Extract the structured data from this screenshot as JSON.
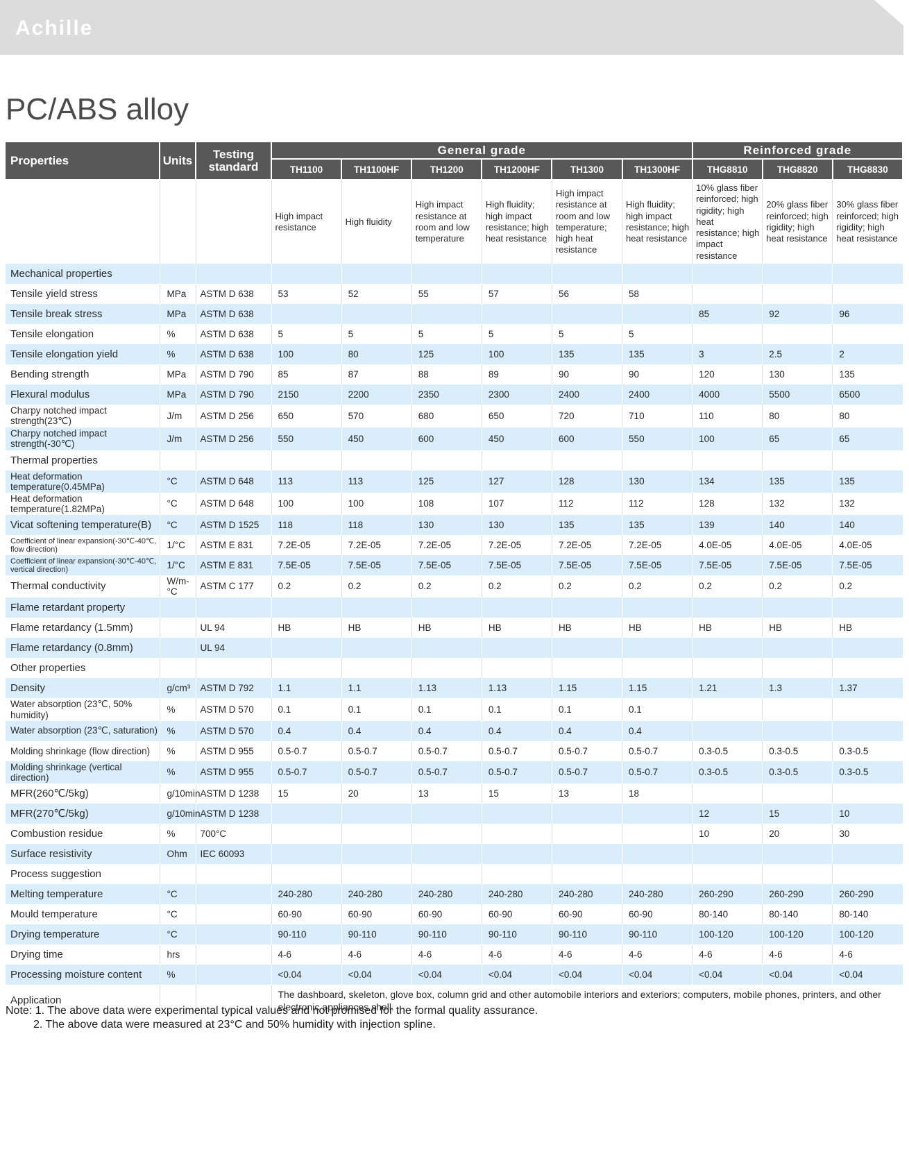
{
  "brand": {
    "logo": "Achille"
  },
  "page_title": "PC/ABS alloy",
  "table": {
    "header": {
      "properties": "Properties",
      "units": "Units",
      "testing_standard": "Testing standard",
      "groups": [
        {
          "label": "General grade",
          "span": 6
        },
        {
          "label": "Reinforced grade",
          "span": 3
        }
      ],
      "grades": [
        "TH1100",
        "TH1100HF",
        "TH1200",
        "TH1200HF",
        "TH1300",
        "TH1300HF",
        "THG8810",
        "THG8820",
        "THG8830"
      ],
      "descriptions": [
        "High impact resistance",
        "High fluidity",
        "High impact resistance at room and low temperature",
        "High fluidity; high impact resistance; high heat resistance",
        "High impact resistance at room and low temperature; high heat resistance",
        "High fluidity; high impact resistance; high heat resistance",
        "10% glass fiber reinforced; high rigidity; high heat resistance; high impact resistance",
        "20% glass fiber reinforced; high rigidity; high heat resistance",
        "30% glass fiber reinforced; high rigidity; high heat resistance"
      ]
    },
    "rows": [
      {
        "type": "section",
        "label": "Mechanical properties"
      },
      {
        "type": "data",
        "label": "Tensile yield stress",
        "unit": "MPa",
        "standard": "ASTM D 638",
        "values": [
          "53",
          "52",
          "55",
          "57",
          "56",
          "58",
          "",
          "",
          ""
        ]
      },
      {
        "type": "data",
        "label": "Tensile break stress",
        "unit": "MPa",
        "standard": "ASTM D 638",
        "values": [
          "",
          "",
          "",
          "",
          "",
          "",
          "85",
          "92",
          "96"
        ]
      },
      {
        "type": "data",
        "label": "Tensile elongation",
        "unit": "%",
        "standard": "ASTM D 638",
        "values": [
          "5",
          "5",
          "5",
          "5",
          "5",
          "5",
          "",
          "",
          ""
        ]
      },
      {
        "type": "data",
        "label": "Tensile elongation yield",
        "unit": "%",
        "standard": "ASTM D 638",
        "values": [
          "100",
          "80",
          "125",
          "100",
          "135",
          "135",
          "3",
          "2.5",
          "2"
        ]
      },
      {
        "type": "data",
        "label": "Bending strength",
        "unit": "MPa",
        "standard": "ASTM D 790",
        "values": [
          "85",
          "87",
          "88",
          "89",
          "90",
          "90",
          "120",
          "130",
          "135"
        ]
      },
      {
        "type": "data",
        "label": "Flexural modulus",
        "unit": "MPa",
        "standard": "ASTM D 790",
        "values": [
          "2150",
          "2200",
          "2350",
          "2300",
          "2400",
          "2400",
          "4000",
          "5500",
          "6500"
        ]
      },
      {
        "type": "data",
        "label": "Charpy notched impact strength(23℃)",
        "unit": "J/m",
        "standard": "ASTM D 256",
        "values": [
          "650",
          "570",
          "680",
          "650",
          "720",
          "710",
          "110",
          "80",
          "80"
        ]
      },
      {
        "type": "data",
        "label": "Charpy notched impact strength(-30℃)",
        "unit": "J/m",
        "standard": "ASTM D 256",
        "values": [
          "550",
          "450",
          "600",
          "450",
          "600",
          "550",
          "100",
          "65",
          "65"
        ]
      },
      {
        "type": "section",
        "label": "Thermal properties"
      },
      {
        "type": "data",
        "label": "Heat deformation temperature(0.45MPa)",
        "unit": "°C",
        "standard": "ASTM D 648",
        "values": [
          "113",
          "113",
          "125",
          "127",
          "128",
          "130",
          "134",
          "135",
          "135"
        ]
      },
      {
        "type": "data",
        "label": "Heat deformation temperature(1.82MPa)",
        "unit": "°C",
        "standard": "ASTM D 648",
        "values": [
          "100",
          "100",
          "108",
          "107",
          "112",
          "112",
          "128",
          "132",
          "132"
        ]
      },
      {
        "type": "data",
        "label": "Vicat softening temperature(B)",
        "unit": "°C",
        "standard": "ASTM D 1525",
        "values": [
          "118",
          "118",
          "130",
          "130",
          "135",
          "135",
          "139",
          "140",
          "140"
        ]
      },
      {
        "type": "data",
        "label": "Coefficient of linear expansion(-30℃-40℃, flow direction)",
        "unit": "1/°C",
        "standard": "ASTM E 831",
        "values": [
          "7.2E-05",
          "7.2E-05",
          "7.2E-05",
          "7.2E-05",
          "7.2E-05",
          "7.2E-05",
          "4.0E-05",
          "4.0E-05",
          "4.0E-05"
        ]
      },
      {
        "type": "data",
        "label": "Coefficient of linear expansion(-30℃-40℃, vertical direction)",
        "unit": "1/°C",
        "standard": "ASTM E 831",
        "values": [
          "7.5E-05",
          "7.5E-05",
          "7.5E-05",
          "7.5E-05",
          "7.5E-05",
          "7.5E-05",
          "7.5E-05",
          "7.5E-05",
          "7.5E-05"
        ]
      },
      {
        "type": "data",
        "label": "Thermal conductivity",
        "unit": "W/m-°C",
        "standard": "ASTM C 177",
        "values": [
          "0.2",
          "0.2",
          "0.2",
          "0.2",
          "0.2",
          "0.2",
          "0.2",
          "0.2",
          "0.2"
        ]
      },
      {
        "type": "section",
        "label": "Flame retardant property"
      },
      {
        "type": "data",
        "label": "Flame retardancy (1.5mm)",
        "unit": "",
        "standard": "UL 94",
        "values": [
          "HB",
          "HB",
          "HB",
          "HB",
          "HB",
          "HB",
          "HB",
          "HB",
          "HB"
        ]
      },
      {
        "type": "data",
        "label": "Flame retardancy (0.8mm)",
        "unit": "",
        "standard": "UL 94",
        "values": [
          "",
          "",
          "",
          "",
          "",
          "",
          "",
          "",
          ""
        ]
      },
      {
        "type": "section",
        "label": "Other properties"
      },
      {
        "type": "data",
        "label": "Density",
        "unit": "g/cm³",
        "standard": "ASTM D 792",
        "values": [
          "1.1",
          "1.1",
          "1.13",
          "1.13",
          "1.15",
          "1.15",
          "1.21",
          "1.3",
          "1.37"
        ]
      },
      {
        "type": "data",
        "label": "Water absorption (23℃, 50% humidity)",
        "unit": "%",
        "standard": "ASTM D 570",
        "values": [
          "0.1",
          "0.1",
          "0.1",
          "0.1",
          "0.1",
          "0.1",
          "",
          "",
          ""
        ]
      },
      {
        "type": "data",
        "label": "Water absorption (23℃, saturation)",
        "unit": "%",
        "standard": "ASTM D 570",
        "values": [
          "0.4",
          "0.4",
          "0.4",
          "0.4",
          "0.4",
          "0.4",
          "",
          "",
          ""
        ]
      },
      {
        "type": "data",
        "label": "Molding shrinkage (flow direction)",
        "unit": "%",
        "standard": "ASTM D 955",
        "values": [
          "0.5-0.7",
          "0.5-0.7",
          "0.5-0.7",
          "0.5-0.7",
          "0.5-0.7",
          "0.5-0.7",
          "0.3-0.5",
          "0.3-0.5",
          "0.3-0.5"
        ]
      },
      {
        "type": "data",
        "label": "Molding shrinkage (vertical direction)",
        "unit": "%",
        "standard": "ASTM D 955",
        "values": [
          "0.5-0.7",
          "0.5-0.7",
          "0.5-0.7",
          "0.5-0.7",
          "0.5-0.7",
          "0.5-0.7",
          "0.3-0.5",
          "0.3-0.5",
          "0.3-0.5"
        ]
      },
      {
        "type": "data",
        "label": "MFR(260℃/5kg)",
        "unit": "g/10min",
        "standard": "ASTM D 1238",
        "values": [
          "15",
          "20",
          "13",
          "15",
          "13",
          "18",
          "",
          "",
          ""
        ]
      },
      {
        "type": "data",
        "label": "MFR(270℃/5kg)",
        "unit": "g/10min",
        "standard": "ASTM D 1238",
        "values": [
          "",
          "",
          "",
          "",
          "",
          "",
          "12",
          "15",
          "10"
        ]
      },
      {
        "type": "data",
        "label": "Combustion residue",
        "unit": "%",
        "standard": "700°C",
        "values": [
          "",
          "",
          "",
          "",
          "",
          "",
          "10",
          "20",
          "30"
        ]
      },
      {
        "type": "data",
        "label": "Surface resistivity",
        "unit": "Ohm",
        "standard": "IEC 60093",
        "values": [
          "",
          "",
          "",
          "",
          "",
          "",
          "",
          "",
          ""
        ]
      },
      {
        "type": "section",
        "label": "Process suggestion"
      },
      {
        "type": "data",
        "label": "Melting temperature",
        "unit": "°C",
        "standard": "",
        "values": [
          "240-280",
          "240-280",
          "240-280",
          "240-280",
          "240-280",
          "240-280",
          "260-290",
          "260-290",
          "260-290"
        ]
      },
      {
        "type": "data",
        "label": "Mould temperature",
        "unit": "°C",
        "standard": "",
        "values": [
          "60-90",
          "60-90",
          "60-90",
          "60-90",
          "60-90",
          "60-90",
          "80-140",
          "80-140",
          "80-140"
        ]
      },
      {
        "type": "data",
        "label": "Drying temperature",
        "unit": "°C",
        "standard": "",
        "values": [
          "90-110",
          "90-110",
          "90-110",
          "90-110",
          "90-110",
          "90-110",
          "100-120",
          "100-120",
          "100-120"
        ]
      },
      {
        "type": "data",
        "label": "Drying time",
        "unit": "hrs",
        "standard": "",
        "values": [
          "4-6",
          "4-6",
          "4-6",
          "4-6",
          "4-6",
          "4-6",
          "4-6",
          "4-6",
          "4-6"
        ]
      },
      {
        "type": "data",
        "label": "Processing moisture content",
        "unit": "%",
        "standard": "",
        "values": [
          "<0.04",
          "<0.04",
          "<0.04",
          "<0.04",
          "<0.04",
          "<0.04",
          "<0.04",
          "<0.04",
          "<0.04"
        ]
      },
      {
        "type": "application",
        "label": "Application",
        "text": "The dashboard, skeleton, glove box, column grid and other automobile interiors and exteriors; computers, mobile phones, printers, and other electronic appliances shell."
      }
    ]
  },
  "notes": [
    "Note: 1. The above data were experimental typical values and not promised for the formal quality assurance.",
    "2. The above data were measured at 23°C and 50% humidity with injection spline."
  ]
}
